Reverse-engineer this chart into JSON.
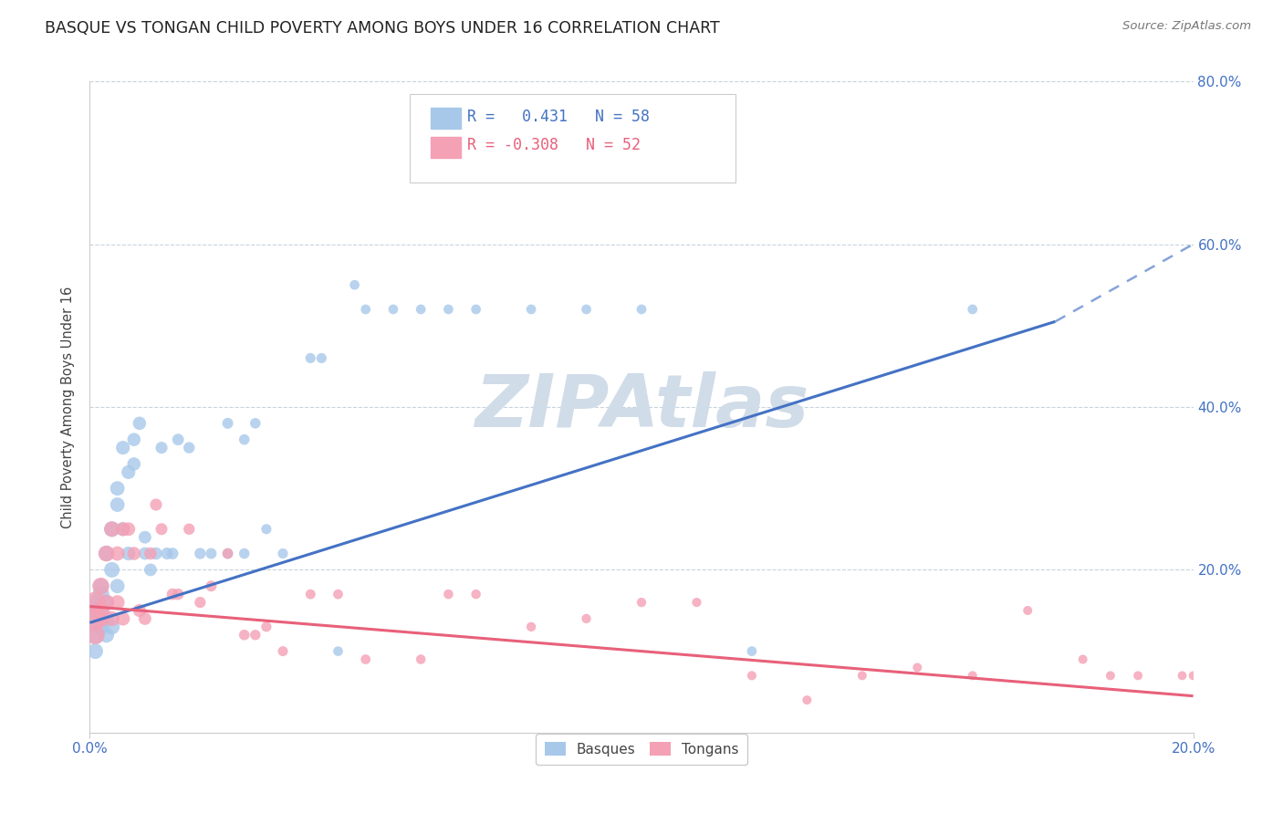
{
  "title": "BASQUE VS TONGAN CHILD POVERTY AMONG BOYS UNDER 16 CORRELATION CHART",
  "source": "Source: ZipAtlas.com",
  "ylabel": "Child Poverty Among Boys Under 16",
  "xlim": [
    0.0,
    0.2
  ],
  "ylim": [
    0.0,
    0.8
  ],
  "xtick_positions": [
    0.0,
    0.2
  ],
  "xtick_labels": [
    "0.0%",
    "20.0%"
  ],
  "ytick_positions": [
    0.2,
    0.4,
    0.6,
    0.8
  ],
  "right_ytick_labels": [
    "20.0%",
    "40.0%",
    "60.0%",
    "80.0%"
  ],
  "basque_R": 0.431,
  "basque_N": 58,
  "tongan_R": -0.308,
  "tongan_N": 52,
  "basque_color": "#A8C8EA",
  "tongan_color": "#F4A0B5",
  "basque_line_color": "#4472C4",
  "tongan_line_color": "#E8607A",
  "watermark": "ZIPAtlas",
  "watermark_color": "#D0DCE8",
  "basque_line": [
    0.0,
    0.135,
    0.175,
    0.505
  ],
  "basque_dashed_line": [
    0.175,
    0.505,
    0.2,
    0.6
  ],
  "tongan_line": [
    0.0,
    0.155,
    0.2,
    0.045
  ],
  "basque_scatter_x": [
    0.001,
    0.001,
    0.001,
    0.001,
    0.001,
    0.002,
    0.002,
    0.002,
    0.002,
    0.003,
    0.003,
    0.003,
    0.003,
    0.004,
    0.004,
    0.004,
    0.005,
    0.005,
    0.005,
    0.006,
    0.006,
    0.007,
    0.007,
    0.008,
    0.008,
    0.009,
    0.01,
    0.01,
    0.011,
    0.012,
    0.013,
    0.014,
    0.015,
    0.016,
    0.018,
    0.02,
    0.022,
    0.025,
    0.025,
    0.028,
    0.028,
    0.03,
    0.032,
    0.035,
    0.04,
    0.042,
    0.045,
    0.048,
    0.05,
    0.055,
    0.06,
    0.065,
    0.07,
    0.08,
    0.09,
    0.1,
    0.12,
    0.16
  ],
  "basque_scatter_y": [
    0.14,
    0.12,
    0.15,
    0.1,
    0.16,
    0.13,
    0.17,
    0.15,
    0.18,
    0.14,
    0.22,
    0.16,
    0.12,
    0.25,
    0.13,
    0.2,
    0.28,
    0.3,
    0.18,
    0.35,
    0.25,
    0.32,
    0.22,
    0.33,
    0.36,
    0.38,
    0.22,
    0.24,
    0.2,
    0.22,
    0.35,
    0.22,
    0.22,
    0.36,
    0.35,
    0.22,
    0.22,
    0.38,
    0.22,
    0.36,
    0.22,
    0.38,
    0.25,
    0.22,
    0.46,
    0.46,
    0.1,
    0.55,
    0.52,
    0.52,
    0.52,
    0.52,
    0.52,
    0.52,
    0.52,
    0.52,
    0.1,
    0.52
  ],
  "basque_scatter_size": [
    350,
    200,
    200,
    150,
    150,
    180,
    180,
    150,
    150,
    150,
    150,
    150,
    150,
    150,
    150,
    150,
    130,
    130,
    130,
    120,
    120,
    120,
    120,
    110,
    110,
    110,
    100,
    100,
    100,
    95,
    90,
    90,
    85,
    85,
    80,
    80,
    75,
    75,
    70,
    70,
    70,
    70,
    65,
    65,
    65,
    65,
    60,
    60,
    60,
    60,
    60,
    60,
    60,
    60,
    60,
    60,
    60,
    60
  ],
  "tongan_scatter_x": [
    0.001,
    0.001,
    0.001,
    0.002,
    0.002,
    0.002,
    0.003,
    0.003,
    0.004,
    0.004,
    0.005,
    0.005,
    0.006,
    0.006,
    0.007,
    0.008,
    0.009,
    0.01,
    0.011,
    0.012,
    0.013,
    0.015,
    0.016,
    0.018,
    0.02,
    0.022,
    0.025,
    0.028,
    0.03,
    0.032,
    0.035,
    0.04,
    0.045,
    0.05,
    0.06,
    0.065,
    0.07,
    0.08,
    0.09,
    0.1,
    0.11,
    0.12,
    0.13,
    0.14,
    0.15,
    0.16,
    0.17,
    0.18,
    0.185,
    0.19,
    0.198,
    0.2
  ],
  "tongan_scatter_y": [
    0.14,
    0.16,
    0.12,
    0.15,
    0.18,
    0.14,
    0.22,
    0.16,
    0.25,
    0.14,
    0.22,
    0.16,
    0.25,
    0.14,
    0.25,
    0.22,
    0.15,
    0.14,
    0.22,
    0.28,
    0.25,
    0.17,
    0.17,
    0.25,
    0.16,
    0.18,
    0.22,
    0.12,
    0.12,
    0.13,
    0.1,
    0.17,
    0.17,
    0.09,
    0.09,
    0.17,
    0.17,
    0.13,
    0.14,
    0.16,
    0.16,
    0.07,
    0.04,
    0.07,
    0.08,
    0.07,
    0.15,
    0.09,
    0.07,
    0.07,
    0.07,
    0.07
  ],
  "tongan_scatter_size": [
    350,
    280,
    220,
    200,
    180,
    160,
    160,
    150,
    150,
    140,
    130,
    130,
    120,
    120,
    115,
    110,
    105,
    100,
    95,
    90,
    88,
    85,
    82,
    80,
    78,
    75,
    72,
    70,
    68,
    65,
    63,
    62,
    60,
    60,
    58,
    58,
    57,
    56,
    55,
    55,
    54,
    53,
    52,
    52,
    52,
    52,
    52,
    52,
    51,
    51,
    50,
    50
  ]
}
